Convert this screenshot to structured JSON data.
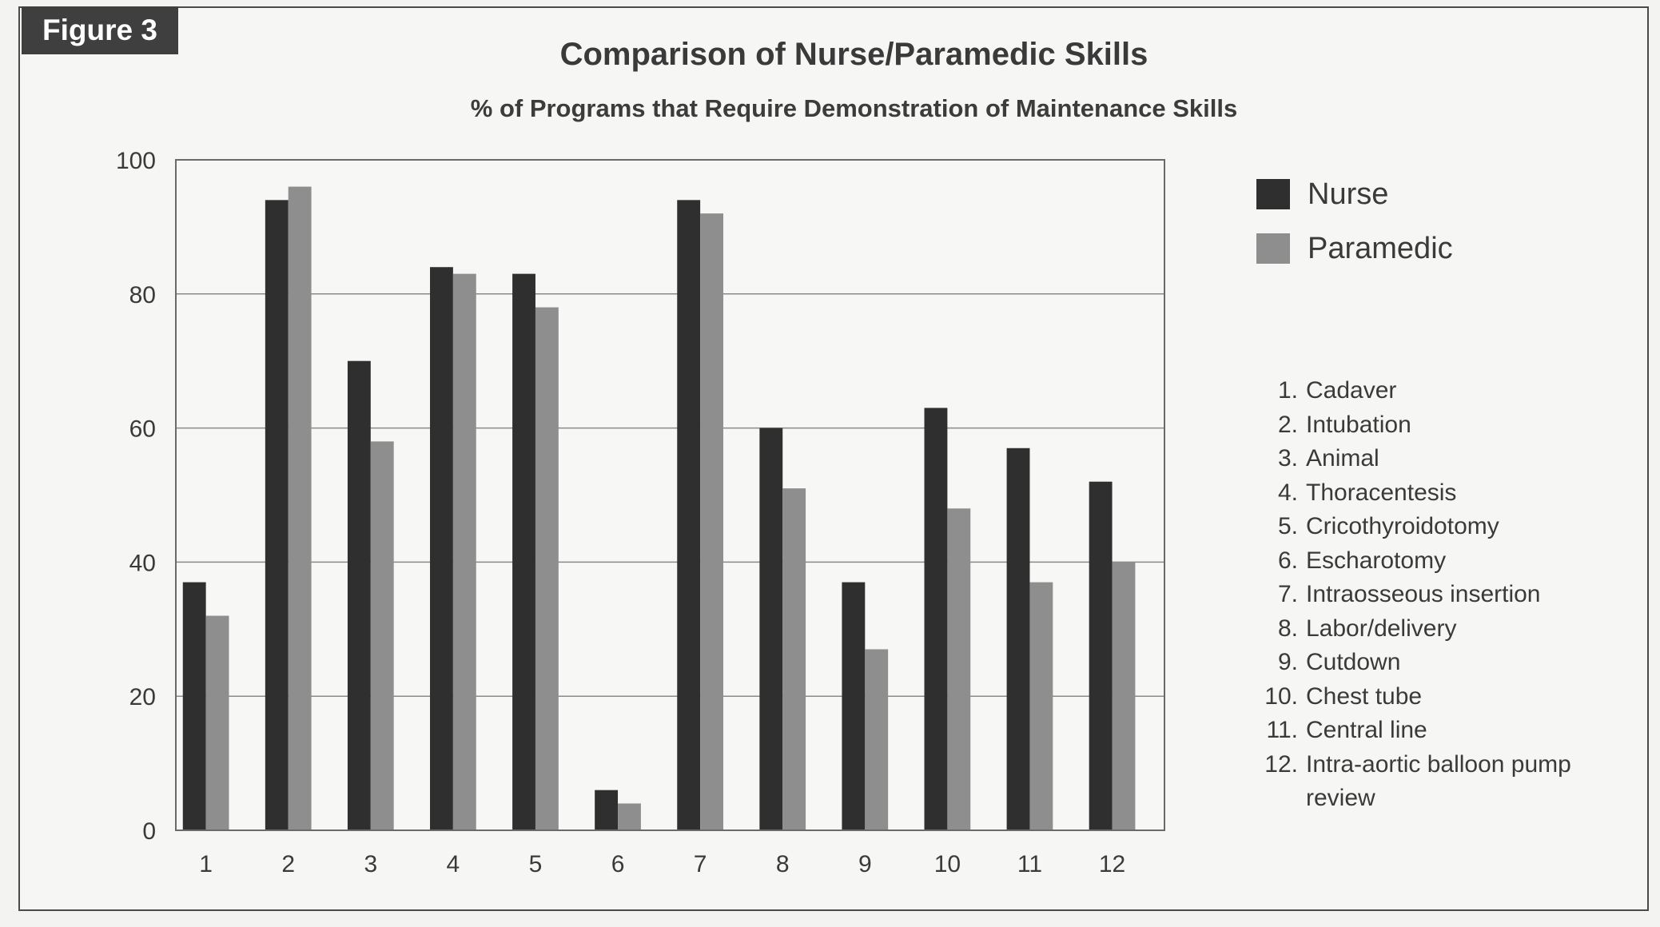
{
  "figure_label": "Figure 3",
  "colors": {
    "nurse": "#2f2f2f",
    "paramedic": "#8e8e8e",
    "gridline": "#8a8a8a",
    "plot_border": "#6a6a6a",
    "plot_background": "#f7f7f5"
  },
  "chart_data": {
    "type": "bar",
    "title": "Comparison of Nurse/Paramedic Skills",
    "subtitle": "% of Programs that Require Demonstration of Maintenance Skills",
    "categories": [
      "1",
      "2",
      "3",
      "4",
      "5",
      "6",
      "7",
      "8",
      "9",
      "10",
      "11",
      "12"
    ],
    "series": [
      {
        "name": "Nurse",
        "values": [
          37,
          94,
          70,
          84,
          83,
          6,
          94,
          60,
          37,
          63,
          57,
          52
        ]
      },
      {
        "name": "Paramedic",
        "values": [
          32,
          96,
          58,
          83,
          78,
          4,
          92,
          51,
          27,
          48,
          37,
          40
        ]
      }
    ],
    "ylim": [
      0,
      100
    ],
    "yticks": [
      0,
      20,
      40,
      60,
      80,
      100
    ],
    "grid": true,
    "legend_position": "right"
  },
  "category_key": [
    {
      "num": "1.",
      "label": "Cadaver"
    },
    {
      "num": "2.",
      "label": "Intubation"
    },
    {
      "num": "3.",
      "label": "Animal"
    },
    {
      "num": "4.",
      "label": "Thoracentesis"
    },
    {
      "num": "5.",
      "label": "Cricothyroidotomy"
    },
    {
      "num": "6.",
      "label": "Escharotomy"
    },
    {
      "num": "7.",
      "label": "Intraosseous insertion"
    },
    {
      "num": "8.",
      "label": "Labor/delivery"
    },
    {
      "num": "9.",
      "label": "Cutdown"
    },
    {
      "num": "10.",
      "label": "Chest tube"
    },
    {
      "num": "11.",
      "label": "Central line"
    },
    {
      "num": "12.",
      "label": "Intra-aortic balloon pump review"
    }
  ]
}
